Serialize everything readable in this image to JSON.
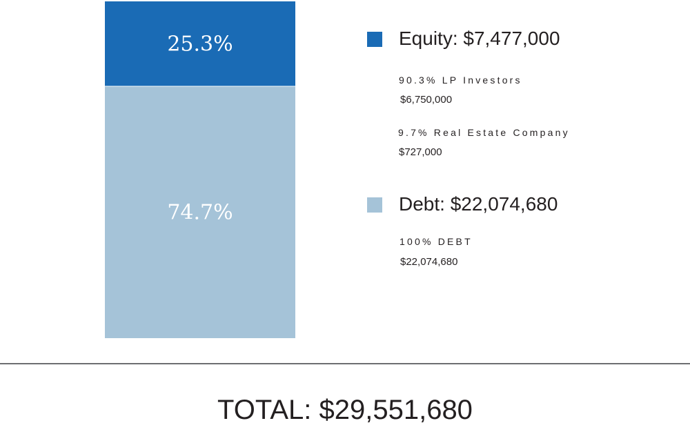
{
  "chart_data": {
    "type": "bar",
    "stacked": true,
    "categories": [
      ""
    ],
    "ylim": [
      0,
      100
    ],
    "series": [
      {
        "name": "Equity",
        "values": [
          25.3
        ],
        "label": "25.3%",
        "color": "#1a6bb5"
      },
      {
        "name": "Debt",
        "values": [
          74.7
        ],
        "label": "74.7%",
        "color": "#a5c3d8"
      }
    ],
    "legend": [
      {
        "key": "equity",
        "label": "Equity: $7,477,000",
        "color": "#1a6bb5",
        "breakdown": [
          {
            "name": "90.3% LP Investors",
            "amount": "$6,750,000"
          },
          {
            "name": "9.7% Real Estate Company",
            "amount": "$727,000"
          }
        ]
      },
      {
        "key": "debt",
        "label": "Debt: $22,074,680",
        "color": "#a5c3d8",
        "breakdown": [
          {
            "name": "100% DEBT",
            "amount": "$22,074,680"
          }
        ]
      }
    ],
    "total": "TOTAL: $29,551,680"
  }
}
